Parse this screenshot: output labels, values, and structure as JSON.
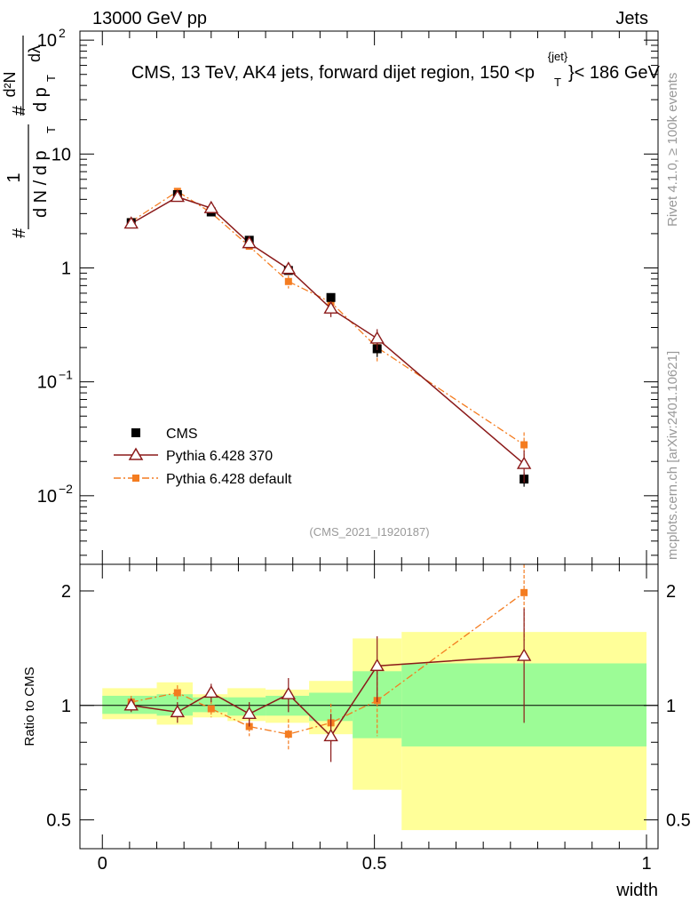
{
  "header": {
    "energy": "13000 GeV pp",
    "category": "Jets",
    "title_main": "CMS, 13 TeV, AK4 jets, forward dijet region, 150 <p",
    "title_sup": "{jet}",
    "title_sub": "T",
    "title_end": "}< 186 GeV",
    "watermark": "(CMS_2021_I1920187)",
    "side_rivet": "Rivet 4.1.0, ≥ 100k events",
    "side_mcplots": "mcplots.cern.ch [arXiv:2401.10621]"
  },
  "chart_data": {
    "type": "line",
    "x_bin_edges": [
      0,
      0.1,
      0.166,
      0.23,
      0.3,
      0.38,
      0.46,
      0.55,
      1.0
    ],
    "x_points": [
      0.053,
      0.138,
      0.2,
      0.27,
      0.342,
      0.42,
      0.505,
      0.775
    ],
    "main": {
      "yscale": "log",
      "ylim": [
        0.0025,
        120
      ],
      "xlim": [
        -0.02,
        1.0
      ],
      "yticks": [
        {
          "value": 0.01,
          "base": "10",
          "exp": "−2"
        },
        {
          "value": 0.1,
          "base": "10",
          "exp": "−1"
        },
        {
          "value": 1,
          "base": "1",
          "exp": ""
        },
        {
          "value": 10,
          "base": "10",
          "exp": ""
        },
        {
          "value": 100,
          "base": "10",
          "exp": "2"
        }
      ],
      "ylabel_left": "#",
      "ylabel_frac_num": "1",
      "ylabel_frac_den": "d N / d p",
      "ylabel_frac_den_sub": "T",
      "ylabel_right_num": "d²N",
      "ylabel_right_den": "d p",
      "ylabel_right_den_sub": "T",
      "ylabel_right_dl": "dλ",
      "series": [
        {
          "name": "CMS",
          "style": "data",
          "color": "#000000",
          "values": [
            2.5,
            4.4,
            3.1,
            1.75,
            0.95,
            0.55,
            0.195,
            0.014
          ],
          "errors": [
            0.15,
            0.25,
            0.2,
            0.1,
            0.07,
            0.05,
            0.03,
            0.002
          ]
        },
        {
          "name": "Pythia 6.428 370",
          "style": "solid-triangle",
          "color": "#8b1a1a",
          "values": [
            2.45,
            4.2,
            3.35,
            1.65,
            0.98,
            0.44,
            0.24,
            0.019
          ],
          "errors": [
            0.1,
            0.2,
            0.2,
            0.1,
            0.08,
            0.07,
            0.05,
            0.006
          ]
        },
        {
          "name": "Pythia 6.428 default",
          "style": "dashdot-square",
          "color": "#f47c20",
          "values": [
            2.55,
            4.7,
            3.05,
            1.55,
            0.76,
            0.5,
            0.2,
            0.028
          ],
          "errors": [
            0.1,
            0.25,
            0.2,
            0.1,
            0.1,
            0.08,
            0.05,
            0.008
          ]
        }
      ]
    },
    "ratio": {
      "yscale": "log",
      "ylim": [
        0.42,
        2.35
      ],
      "ylabel": "Ratio to CMS",
      "yticks": [
        {
          "value": 0.5,
          "label": "0.5"
        },
        {
          "value": 1,
          "label": "1"
        },
        {
          "value": 2,
          "label": "2"
        }
      ],
      "xticks": [
        {
          "value": 0,
          "label": "0"
        },
        {
          "value": 0.5,
          "label": "0.5"
        },
        {
          "value": 1,
          "label": "1"
        }
      ],
      "xlabel": "width",
      "band_inner": [
        [
          0.95,
          1.06
        ],
        [
          0.94,
          1.07
        ],
        [
          0.96,
          1.05
        ],
        [
          0.94,
          1.05
        ],
        [
          0.94,
          1.06
        ],
        [
          0.91,
          1.08
        ],
        [
          0.82,
          1.23
        ],
        [
          0.78,
          1.29
        ]
      ],
      "band_outer": [
        [
          0.92,
          1.11
        ],
        [
          0.89,
          1.15
        ],
        [
          0.93,
          1.07
        ],
        [
          0.91,
          1.11
        ],
        [
          0.9,
          1.1
        ],
        [
          0.84,
          1.16
        ],
        [
          0.6,
          1.5
        ],
        [
          0.47,
          1.56
        ]
      ],
      "series": [
        {
          "name": "Pythia 6.428 370",
          "values": [
            1.0,
            0.96,
            1.08,
            0.95,
            1.07,
            0.83,
            1.27,
            1.35
          ],
          "errors": [
            0.04,
            0.06,
            0.06,
            0.07,
            0.11,
            0.12,
            0.25,
            0.45
          ]
        },
        {
          "name": "Pythia 6.428 default",
          "values": [
            1.02,
            1.08,
            0.98,
            0.88,
            0.84,
            0.9,
            1.03,
            1.98
          ],
          "errors": [
            0.04,
            0.05,
            0.05,
            0.05,
            0.08,
            0.11,
            0.2,
            0.5
          ]
        }
      ]
    }
  }
}
